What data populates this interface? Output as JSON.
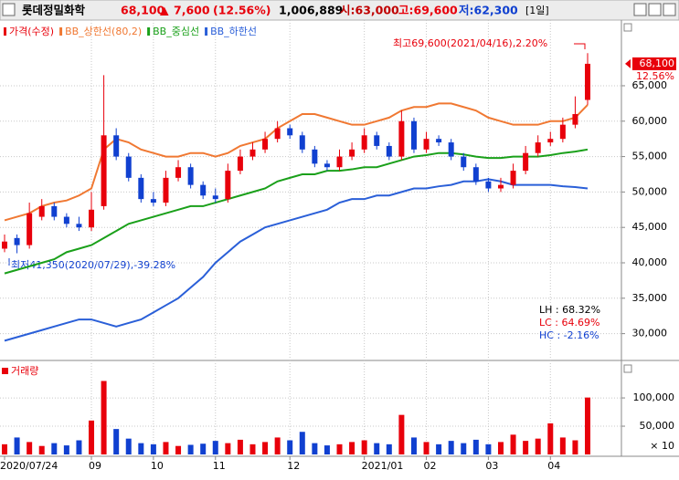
{
  "header": {
    "name": "롯데정밀화학",
    "price": "68,100",
    "arrow": "▲",
    "change": "7,600",
    "change_rate": "(12.56%)",
    "volume": "1,006,889",
    "open": "시:63,000",
    "high": "고:69,600",
    "low": "저:62,300",
    "period": "[1일]"
  },
  "chart_data": {
    "type": "candlestick",
    "legend": [
      "가격(수정)",
      "BB_상한선(80,2)",
      "BB_중심선",
      "BB_하한선"
    ],
    "legend_colors": [
      "#e8000b",
      "#f07832",
      "#1aa01a",
      "#2a5fd8"
    ],
    "up_color": "#e8000b",
    "down_color": "#1040d0",
    "categories": [
      "2020/07/24",
      null,
      null,
      null,
      null,
      null,
      null,
      "09",
      null,
      null,
      null,
      null,
      "10",
      null,
      null,
      null,
      null,
      "11",
      null,
      null,
      null,
      null,
      null,
      "12",
      null,
      null,
      null,
      null,
      null,
      "2021/01",
      null,
      null,
      null,
      null,
      "02",
      null,
      null,
      null,
      null,
      "03",
      null,
      null,
      null,
      null,
      "04",
      null,
      null,
      null
    ],
    "open": [
      42000,
      43500,
      42500,
      46500,
      48000,
      46500,
      45500,
      45000,
      48000,
      58000,
      55000,
      52000,
      49000,
      48500,
      52000,
      53500,
      51000,
      49500,
      49000,
      53000,
      55000,
      56000,
      57500,
      59000,
      58000,
      56000,
      54000,
      53500,
      55000,
      56000,
      58000,
      56500,
      55000,
      60000,
      56000,
      57500,
      57000,
      55000,
      53500,
      51500,
      50500,
      51000,
      53000,
      55500,
      57000,
      57500,
      59500,
      63000
    ],
    "high": [
      44000,
      44000,
      48500,
      49000,
      48500,
      47000,
      46500,
      50000,
      66500,
      59000,
      55500,
      52500,
      50000,
      53000,
      54500,
      54000,
      51500,
      50500,
      54000,
      56000,
      57000,
      58500,
      60000,
      59500,
      58500,
      56500,
      54500,
      56000,
      57000,
      59000,
      58500,
      57000,
      61500,
      60500,
      58500,
      58000,
      57500,
      55500,
      54000,
      52000,
      52000,
      54000,
      56500,
      58000,
      58500,
      60500,
      63500,
      69600
    ],
    "low": [
      41500,
      41350,
      42000,
      46000,
      46000,
      45000,
      44500,
      44500,
      47500,
      54500,
      51500,
      48500,
      48000,
      48000,
      51500,
      50500,
      49000,
      48500,
      48500,
      52500,
      54500,
      55500,
      57000,
      57500,
      55500,
      53500,
      53000,
      53000,
      54500,
      55500,
      56000,
      54500,
      54500,
      55500,
      55500,
      56500,
      54500,
      53000,
      51000,
      50000,
      50000,
      50500,
      52500,
      55000,
      56500,
      57000,
      59000,
      62300
    ],
    "close": [
      43000,
      42500,
      47000,
      48000,
      46500,
      45500,
      45000,
      47500,
      58000,
      55000,
      52000,
      49000,
      48500,
      52000,
      53500,
      51000,
      49500,
      49000,
      53000,
      55000,
      56000,
      57500,
      59000,
      58000,
      56000,
      54000,
      53500,
      55000,
      56000,
      58000,
      56500,
      55000,
      60000,
      56000,
      57500,
      57000,
      55000,
      53500,
      51500,
      50500,
      51000,
      53000,
      55500,
      57000,
      57500,
      59500,
      61000,
      68100
    ],
    "bb_upper": [
      46000,
      46500,
      47000,
      48000,
      48500,
      48800,
      49500,
      50500,
      56000,
      57500,
      57000,
      56000,
      55500,
      55000,
      55000,
      55500,
      55500,
      55000,
      55500,
      56500,
      57000,
      57500,
      59000,
      60000,
      61000,
      61000,
      60500,
      60000,
      59500,
      59500,
      60000,
      60500,
      61500,
      62000,
      62000,
      62500,
      62500,
      62000,
      61500,
      60500,
      60000,
      59500,
      59500,
      59500,
      60000,
      60000,
      60500,
      62300
    ],
    "bb_middle": [
      38500,
      39000,
      39500,
      40000,
      40500,
      41500,
      42000,
      42500,
      43500,
      44500,
      45500,
      46000,
      46500,
      47000,
      47500,
      48000,
      48000,
      48500,
      49000,
      49500,
      50000,
      50500,
      51500,
      52000,
      52500,
      52500,
      53000,
      53000,
      53200,
      53500,
      53500,
      54000,
      54500,
      55000,
      55200,
      55500,
      55500,
      55300,
      55000,
      54800,
      54800,
      55000,
      55000,
      55000,
      55200,
      55500,
      55700,
      56000
    ],
    "bb_lower": [
      29000,
      29500,
      30000,
      30500,
      31000,
      31500,
      32000,
      32000,
      31500,
      31000,
      31500,
      32000,
      33000,
      34000,
      35000,
      36500,
      38000,
      40000,
      41500,
      43000,
      44000,
      45000,
      45500,
      46000,
      46500,
      47000,
      47500,
      48500,
      49000,
      49000,
      49500,
      49500,
      50000,
      50500,
      50500,
      50800,
      51000,
      51500,
      51500,
      51800,
      51500,
      51000,
      51000,
      51000,
      51000,
      50800,
      50700,
      50500
    ],
    "volume": [
      18000,
      30000,
      22000,
      15000,
      20000,
      16000,
      25000,
      60000,
      130000,
      45000,
      28000,
      20000,
      18000,
      22000,
      15000,
      17000,
      19000,
      24000,
      20000,
      26000,
      18000,
      22000,
      30000,
      25000,
      40000,
      20000,
      16000,
      18000,
      22000,
      25000,
      20000,
      18000,
      70000,
      30000,
      22000,
      18000,
      24000,
      20000,
      26000,
      18000,
      22000,
      35000,
      24000,
      28000,
      55000,
      30000,
      25000,
      100689
    ],
    "ylim": [
      26600,
      73500
    ],
    "yticks": [
      {
        "value": 30000,
        "label": "30,000"
      },
      {
        "value": 35000,
        "label": "35,000"
      },
      {
        "value": 40000,
        "label": "40,000"
      },
      {
        "value": 45000,
        "label": "45,000"
      },
      {
        "value": 50000,
        "label": "50,000"
      },
      {
        "value": 55000,
        "label": "55,000"
      },
      {
        "value": 60000,
        "label": "60,000"
      },
      {
        "value": 65000,
        "label": "65,000"
      }
    ],
    "volume_title": "거래량",
    "volume_ylim": [
      0,
      155000
    ],
    "volume_yticks": [
      {
        "value": 50000,
        "label": "50,000"
      },
      {
        "value": 100000,
        "label": "100,000"
      }
    ],
    "volume_unit": "× 10",
    "last_change": "12.56%",
    "high_annotation": "최고69,600(2021/04/16),2.20%",
    "low_annotation": "최저41,350(2020/07/29),-39.28%",
    "stats": [
      "LH : 68.32%",
      "LC : 64.69%",
      "HC : -2.16%"
    ],
    "stats_colors": [
      "#000000",
      "#e8000b",
      "#1040d0"
    ],
    "grid": true
  }
}
